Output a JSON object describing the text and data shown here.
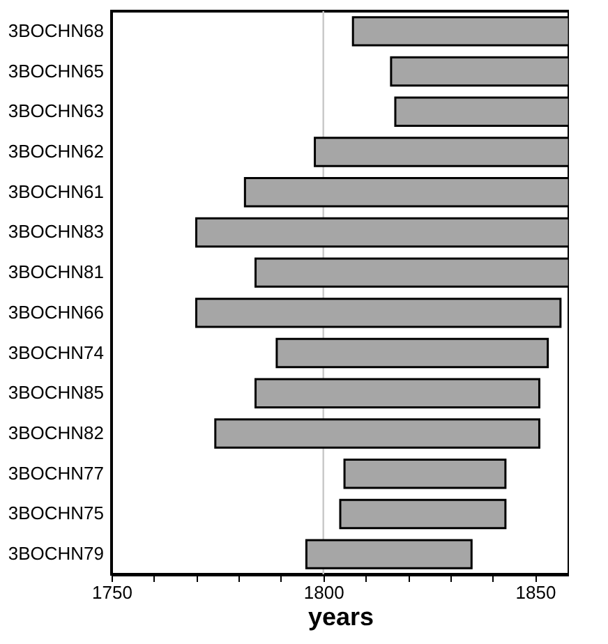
{
  "chart_data": {
    "type": "bar",
    "orientation": "horizontal",
    "xlabel": "years",
    "categories": [
      "3BOCHN68",
      "3BOCHN65",
      "3BOCHN63",
      "3BOCHN62",
      "3BOCHN61",
      "3BOCHN83",
      "3BOCHN81",
      "3BOCHN66",
      "3BOCHN74",
      "3BOCHN85",
      "3BOCHN82",
      "3BOCHN77",
      "3BOCHN75",
      "3BOCHN79"
    ],
    "base": [
      1807,
      1816,
      1817,
      1798,
      1781.5,
      1770,
      1784,
      1770,
      1789,
      1784,
      1774.5,
      1805,
      1804,
      1796
    ],
    "values": [
      51,
      42,
      41,
      60,
      76.5,
      88,
      74,
      86,
      64,
      67,
      76.5,
      38,
      39,
      39
    ],
    "color": "#a6a6a6",
    "xlim": [
      1750,
      1858
    ],
    "xticks": [
      1750,
      {
        "value": 1760,
        "label": null
      },
      {
        "value": 1770,
        "label": null
      },
      {
        "value": 1780,
        "label": null
      },
      {
        "value": 1790,
        "label": null
      },
      1800,
      {
        "value": 1810,
        "label": null
      },
      {
        "value": 1820,
        "label": null
      },
      {
        "value": 1830,
        "label": null
      },
      {
        "value": 1840,
        "label": null
      },
      1850
    ],
    "ref_lines": [
      {
        "axis": "x",
        "value": 1800,
        "color": "#c8c8c8"
      }
    ],
    "grid": false
  }
}
